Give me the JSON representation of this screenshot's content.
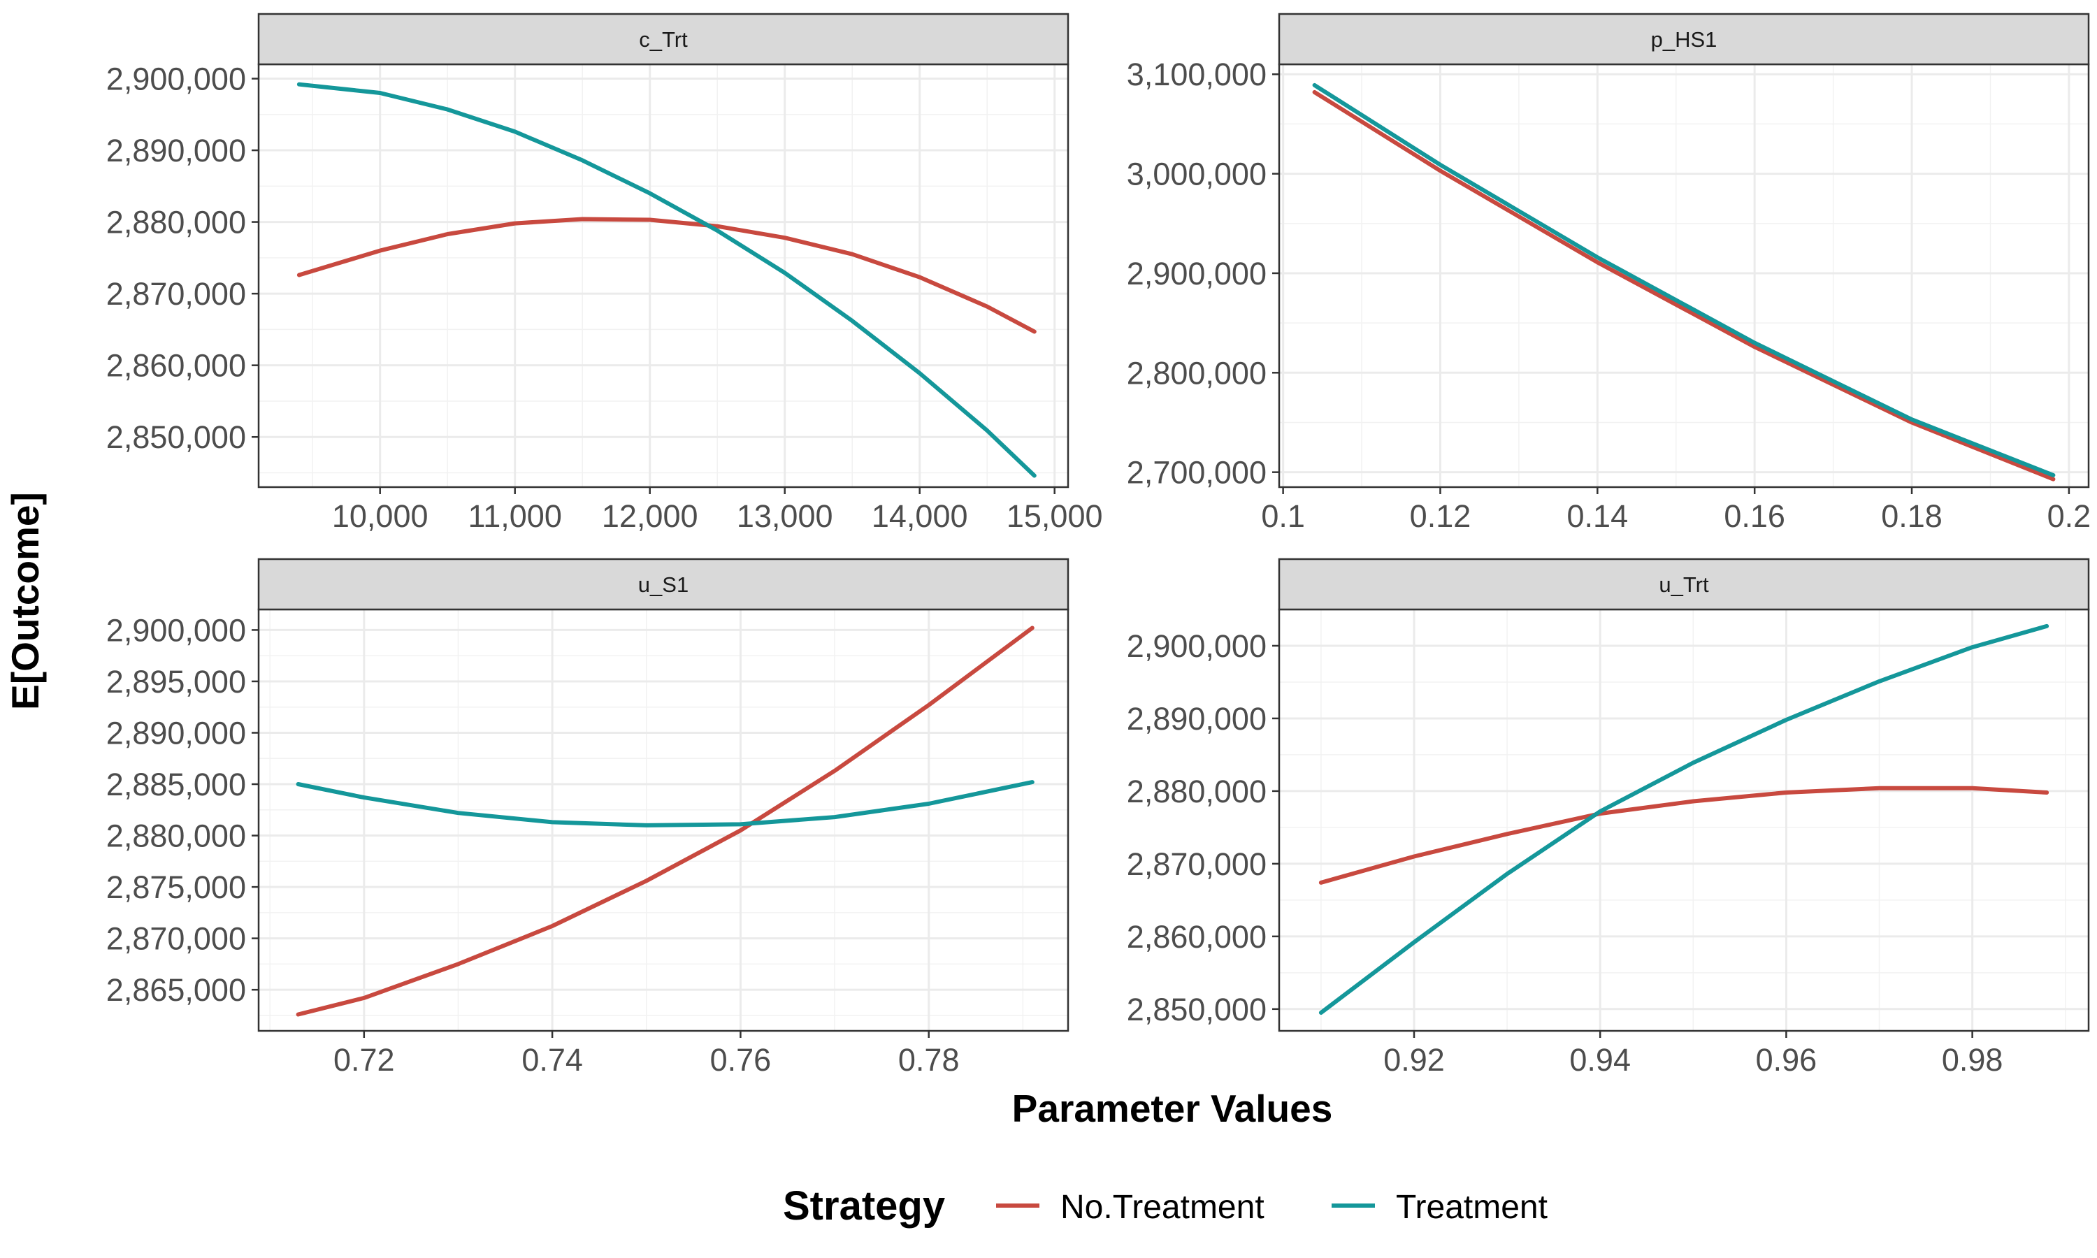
{
  "chart_data": {
    "type": "line",
    "ylabel": "E[Outcome]",
    "xlabel": "Parameter Values",
    "legend": {
      "title": "Strategy",
      "position": "bottom",
      "entries": [
        {
          "name": "No.Treatment",
          "color": "#C8493F"
        },
        {
          "name": "Treatment",
          "color": "#14979A"
        }
      ]
    },
    "grid": true,
    "panels": [
      {
        "strip": "c_Trt",
        "xlim": [
          9100,
          15100
        ],
        "ylim": [
          2843000,
          2902000
        ],
        "x_ticks": [
          10000,
          11000,
          12000,
          13000,
          14000,
          15000
        ],
        "x_tick_labels": [
          "10,000",
          "11,000",
          "12,000",
          "13,000",
          "14,000",
          "15,000"
        ],
        "y_ticks": [
          2850000,
          2860000,
          2870000,
          2880000,
          2890000,
          2900000
        ],
        "y_tick_labels": [
          "2,850,000",
          "2,860,000",
          "2,870,000",
          "2,880,000",
          "2,890,000",
          "2,900,000"
        ],
        "series": [
          {
            "name": "No.Treatment",
            "x": [
              9400,
              10000,
              10500,
              11000,
              11500,
              12000,
              12500,
              13000,
              13500,
              14000,
              14500,
              14850
            ],
            "y": [
              2872600,
              2876000,
              2878300,
              2879800,
              2880400,
              2880300,
              2879400,
              2877800,
              2875500,
              2872300,
              2868200,
              2864700
            ]
          },
          {
            "name": "Treatment",
            "x": [
              9400,
              10000,
              10500,
              11000,
              11500,
              12000,
              12500,
              13000,
              13500,
              14000,
              14500,
              14850
            ],
            "y": [
              2899200,
              2898000,
              2895700,
              2892600,
              2888600,
              2884000,
              2878800,
              2872900,
              2866200,
              2858900,
              2850900,
              2844600
            ]
          }
        ]
      },
      {
        "strip": "p_HS1",
        "xlim": [
          0.0995,
          0.2025
        ],
        "ylim": [
          2685000,
          3110000
        ],
        "x_ticks": [
          0.1,
          0.12,
          0.14,
          0.16,
          0.18,
          0.2
        ],
        "x_tick_labels": [
          "0.1",
          "0.12",
          "0.14",
          "0.16",
          "0.18",
          "0.2"
        ],
        "y_ticks": [
          2700000,
          2800000,
          2900000,
          3000000,
          3100000
        ],
        "y_tick_labels": [
          "2,700,000",
          "2,800,000",
          "2,900,000",
          "3,000,000",
          "3,100,000"
        ],
        "series": [
          {
            "name": "No.Treatment",
            "x": [
              0.104,
              0.12,
              0.14,
              0.16,
              0.18,
              0.198
            ],
            "y": [
              3082000,
              3003000,
              2911000,
              2826000,
              2750000,
              2693000
            ]
          },
          {
            "name": "Treatment",
            "x": [
              0.104,
              0.12,
              0.14,
              0.16,
              0.18,
              0.198
            ],
            "y": [
              3089000,
              3009000,
              2916000,
              2830000,
              2753000,
              2697000
            ]
          }
        ]
      },
      {
        "strip": "u_S1",
        "xlim": [
          0.7088,
          0.7948
        ],
        "ylim": [
          2861000,
          2902000
        ],
        "x_ticks": [
          0.72,
          0.74,
          0.76,
          0.78
        ],
        "x_tick_labels": [
          "0.72",
          "0.74",
          "0.76",
          "0.78"
        ],
        "y_ticks": [
          2865000,
          2870000,
          2875000,
          2880000,
          2885000,
          2890000,
          2895000,
          2900000
        ],
        "y_tick_labels": [
          "2,865,000",
          "2,870,000",
          "2,875,000",
          "2,880,000",
          "2,885,000",
          "2,890,000",
          "2,895,000",
          "2,900,000"
        ],
        "series": [
          {
            "name": "No.Treatment",
            "x": [
              0.713,
              0.72,
              0.73,
              0.74,
              0.75,
              0.76,
              0.77,
              0.78,
              0.791
            ],
            "y": [
              2862600,
              2864200,
              2867500,
              2871200,
              2875600,
              2880500,
              2886300,
              2892700,
              2900200
            ]
          },
          {
            "name": "Treatment",
            "x": [
              0.713,
              0.72,
              0.73,
              0.74,
              0.75,
              0.76,
              0.77,
              0.78,
              0.791
            ],
            "y": [
              2885000,
              2883700,
              2882200,
              2881300,
              2881000,
              2881100,
              2881800,
              2883100,
              2885200
            ]
          }
        ]
      },
      {
        "strip": "u_Trt",
        "xlim": [
          0.9055,
          0.9925
        ],
        "ylim": [
          2847000,
          2905000
        ],
        "x_ticks": [
          0.92,
          0.94,
          0.96,
          0.98
        ],
        "x_tick_labels": [
          "0.92",
          "0.94",
          "0.96",
          "0.98"
        ],
        "y_ticks": [
          2850000,
          2860000,
          2870000,
          2880000,
          2890000,
          2900000
        ],
        "y_tick_labels": [
          "2,850,000",
          "2,860,000",
          "2,870,000",
          "2,880,000",
          "2,890,000",
          "2,900,000"
        ],
        "series": [
          {
            "name": "No.Treatment",
            "x": [
              0.91,
              0.92,
              0.93,
              0.94,
              0.95,
              0.96,
              0.97,
              0.98,
              0.988
            ],
            "y": [
              2867400,
              2871000,
              2874100,
              2876900,
              2878600,
              2879800,
              2880400,
              2880400,
              2879800
            ]
          },
          {
            "name": "Treatment",
            "x": [
              0.91,
              0.92,
              0.93,
              0.94,
              0.95,
              0.96,
              0.97,
              0.98,
              0.988
            ],
            "y": [
              2849500,
              2859200,
              2868600,
              2877200,
              2883900,
              2889800,
              2895100,
              2899800,
              2902700
            ]
          }
        ]
      }
    ]
  }
}
